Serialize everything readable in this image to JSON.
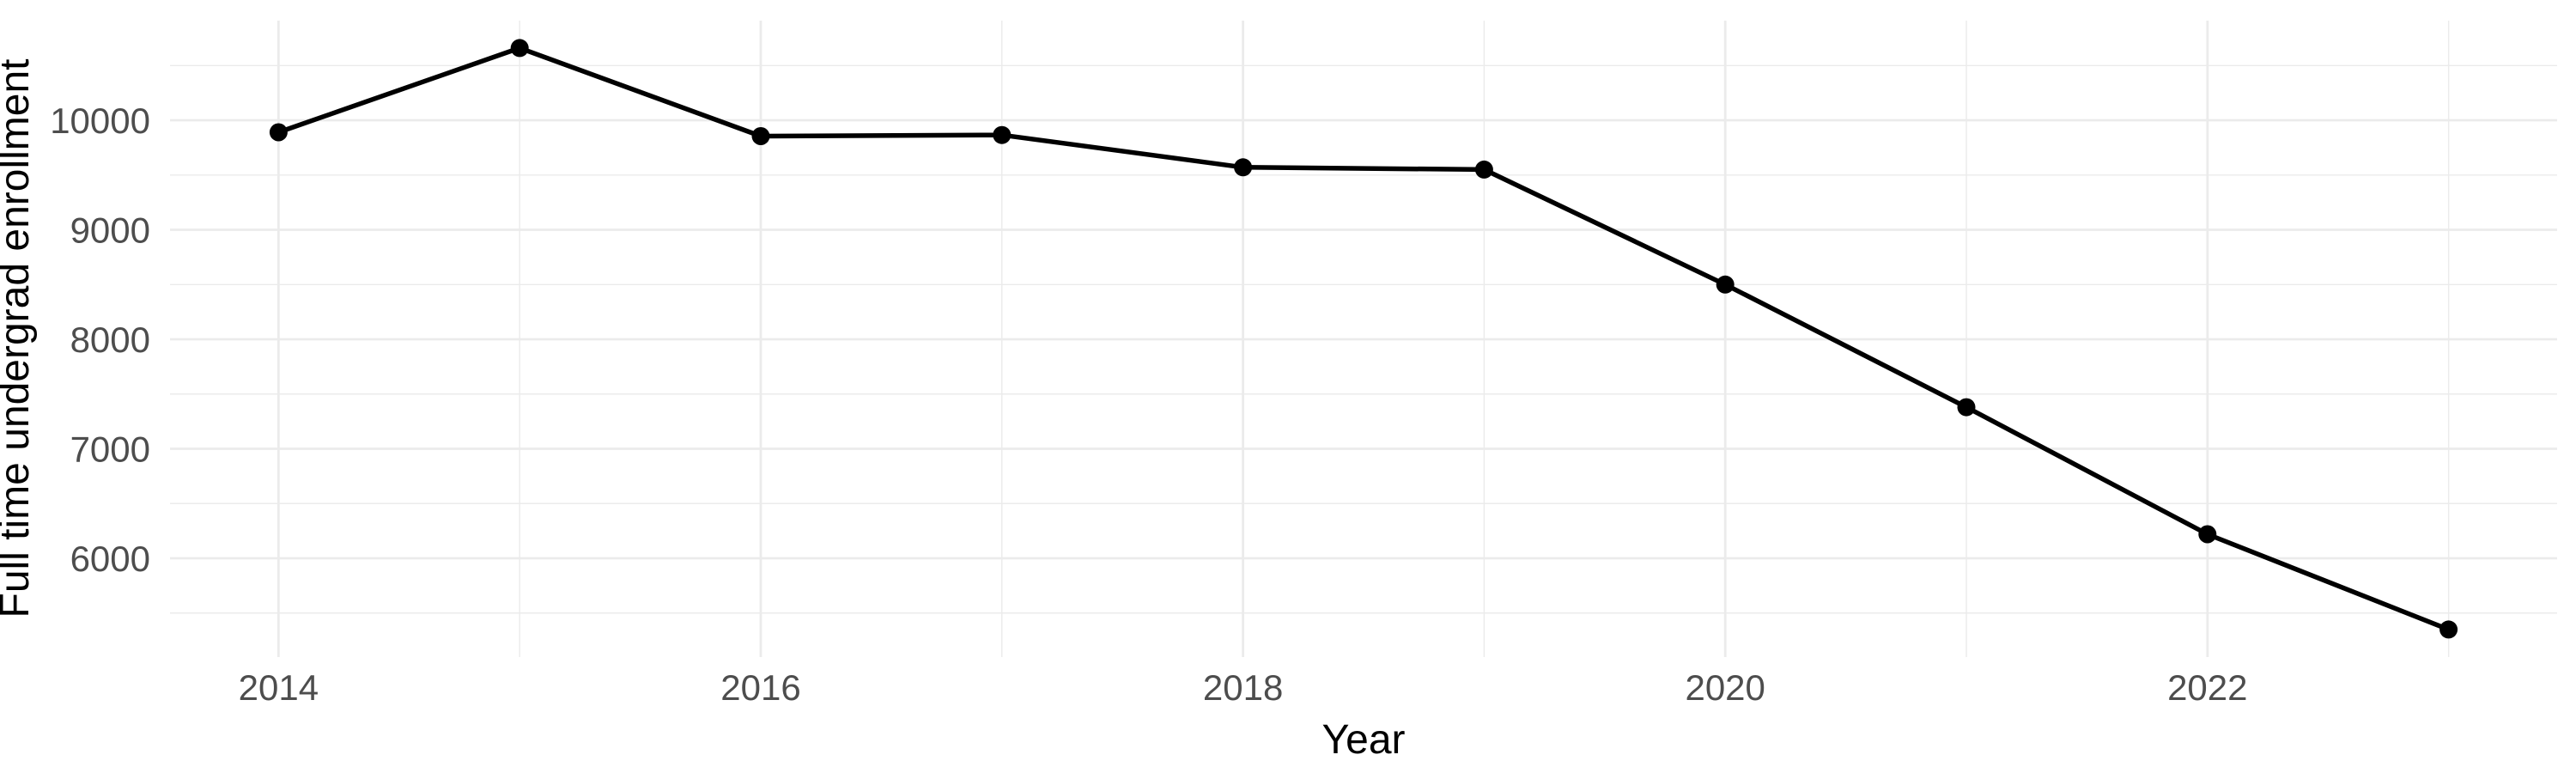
{
  "figure": {
    "background": "#FFFFFF"
  },
  "chart_data": {
    "type": "line",
    "title": "",
    "xlabel": "Year",
    "ylabel": "Full time undergrad enrollment",
    "x": [
      2014,
      2015,
      2016,
      2017,
      2018,
      2019,
      2020,
      2021,
      2022,
      2023
    ],
    "values": [
      9890,
      10660,
      9855,
      9865,
      9570,
      9550,
      8500,
      7380,
      6220,
      5350
    ],
    "xlim": [
      2013.55,
      2023.45
    ],
    "ylim": [
      5098,
      10910
    ],
    "x_major_ticks": {
      "values": [
        2014,
        2016,
        2018,
        2020,
        2022
      ],
      "labels": [
        "2014",
        "2016",
        "2018",
        "2020",
        "2022"
      ]
    },
    "x_minor_gridlines": [
      2015,
      2017,
      2019,
      2021,
      2023
    ],
    "y_major_ticks": {
      "values": [
        6000,
        7000,
        8000,
        9000,
        10000
      ],
      "labels": [
        "6000",
        "7000",
        "8000",
        "9000",
        "10000"
      ]
    },
    "y_minor_gridlines": [
      5500,
      6500,
      7500,
      8500,
      9500,
      10500
    ],
    "grid": "on",
    "legend": "none",
    "marker": "filled-circle",
    "colors": {
      "line": "#000000",
      "point": "#000000",
      "grid_major": "#EBEBEB",
      "grid_minor": "#EBEBEB",
      "tick_label": "#4D4D4D",
      "axis_title": "#000000",
      "background": "#FFFFFF"
    }
  }
}
